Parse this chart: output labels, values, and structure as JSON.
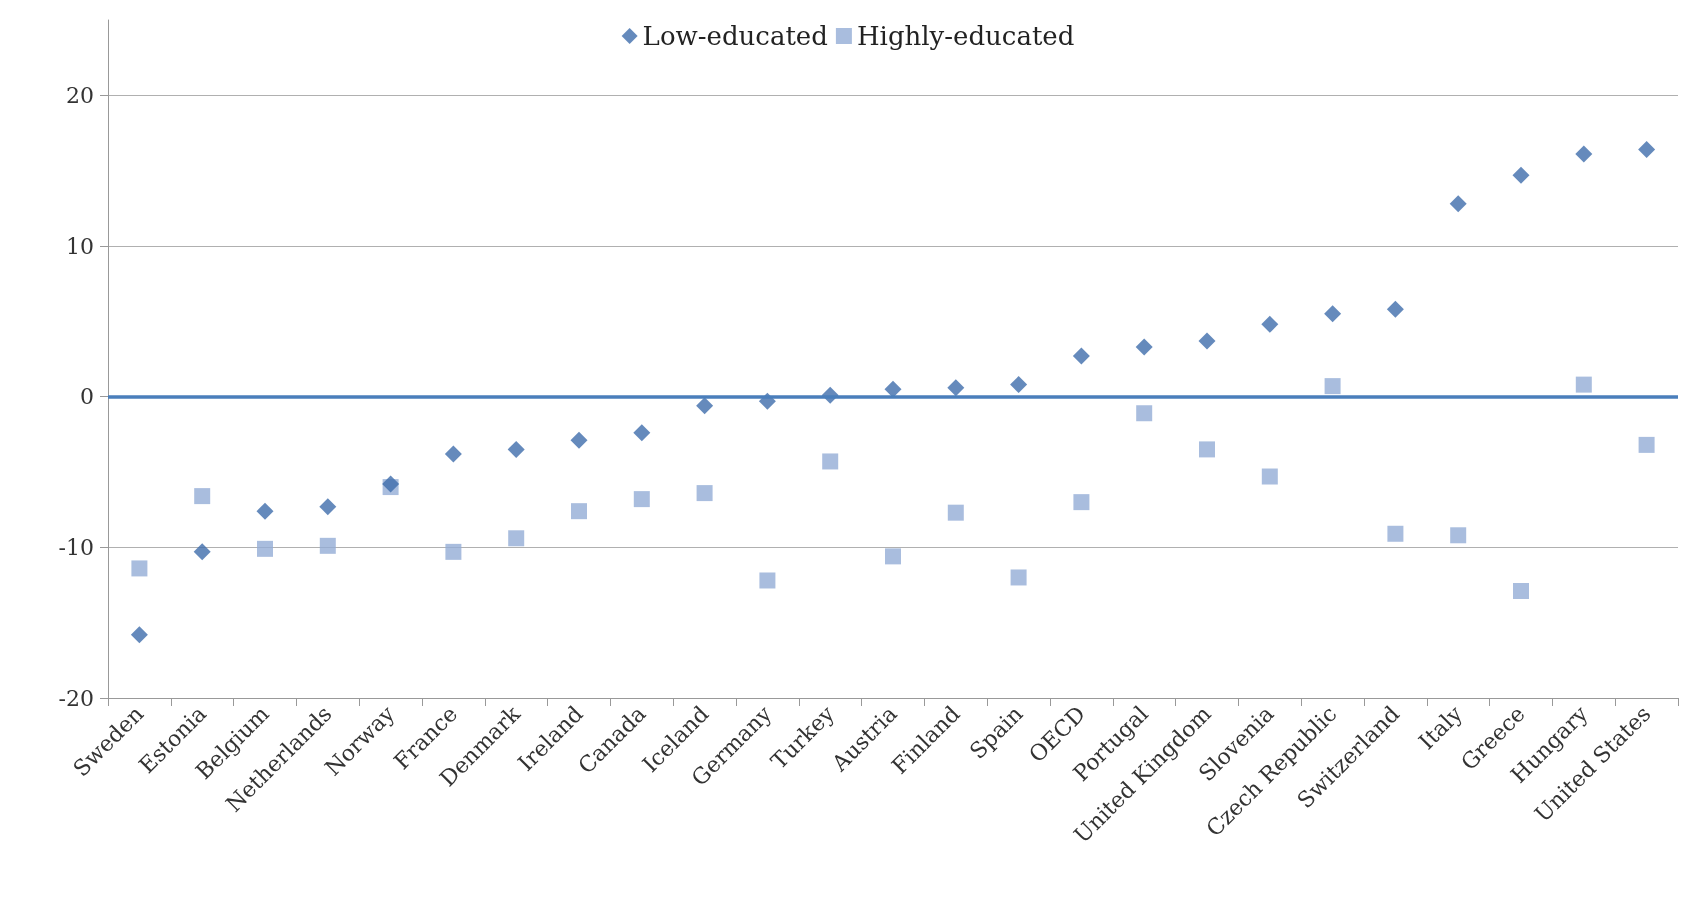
{
  "chart_data": {
    "type": "scatter",
    "categories": [
      "Sweden",
      "Estonia",
      "Belgium",
      "Netherlands",
      "Norway",
      "France",
      "Denmark",
      "Ireland",
      "Canada",
      "Iceland",
      "Germany",
      "Turkey",
      "Austria",
      "Finland",
      "Spain",
      "OECD",
      "Portugal",
      "United Kingdom",
      "Slovenia",
      "Czech Republic",
      "Switzerland",
      "Italy",
      "Greece",
      "Hungary",
      "United States"
    ],
    "series": [
      {
        "name": "Low-educated",
        "color": "#3e6dab",
        "marker": "diamond",
        "values": [
          -15.8,
          -10.3,
          -7.6,
          -7.3,
          -5.8,
          -3.8,
          -3.5,
          -2.9,
          -2.4,
          -0.6,
          -0.3,
          0.1,
          0.5,
          0.6,
          0.8,
          2.7,
          3.3,
          3.7,
          4.8,
          5.5,
          5.8,
          12.8,
          14.7,
          16.1,
          16.4
        ]
      },
      {
        "name": "Highly-educated",
        "color": "#93acd6",
        "marker": "square",
        "values": [
          -11.4,
          -6.6,
          -10.1,
          -9.9,
          -6.0,
          -10.3,
          -9.4,
          -7.6,
          -6.8,
          -6.4,
          -12.2,
          -4.3,
          -10.6,
          -7.7,
          -12.0,
          -7.0,
          -1.1,
          -3.5,
          -5.3,
          0.7,
          -9.1,
          -9.2,
          -12.9,
          0.8,
          -3.2
        ]
      }
    ],
    "ylim": [
      -20,
      25
    ],
    "yticks": [
      -20,
      -10,
      0,
      10,
      20
    ],
    "grid": "y",
    "legend": "top",
    "ref_lines": [
      {
        "axis": "y",
        "value": 0,
        "color": "#4a7ebb",
        "line_style": "solid"
      }
    ]
  }
}
